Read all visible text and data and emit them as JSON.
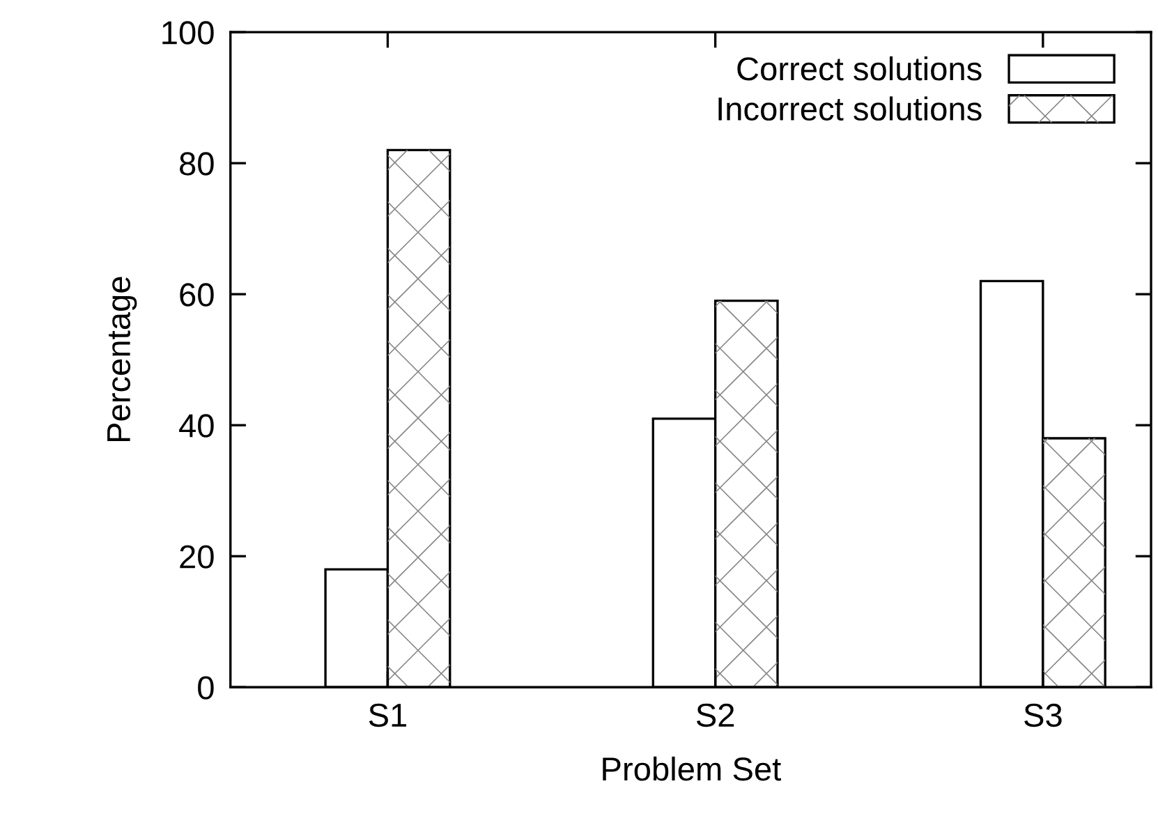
{
  "chart_data": {
    "type": "bar",
    "xlabel": "Problem Set",
    "ylabel": "Percentage",
    "categories": [
      "S1",
      "S2",
      "S3"
    ],
    "series": [
      {
        "name": "Correct solutions",
        "color": "#ffffff",
        "values": [
          18,
          41,
          62
        ]
      },
      {
        "name": "Incorrect solutions",
        "color": "#ffffff",
        "values": [
          82,
          59,
          38
        ]
      }
    ],
    "ylim": [
      0,
      100
    ],
    "yticks": [
      0,
      20,
      40,
      60,
      80,
      100
    ],
    "grid": false,
    "legend": "top right"
  }
}
